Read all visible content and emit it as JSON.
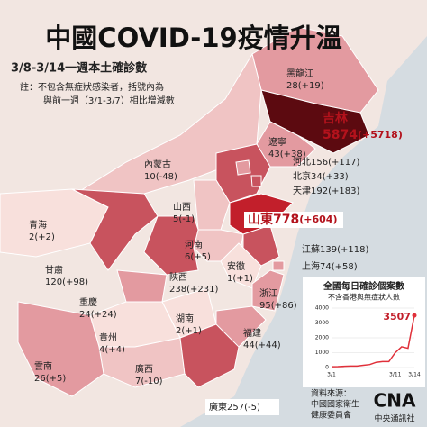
{
  "header": {
    "title": "中國COVID-19疫情升溫",
    "subtitle": "3/8-3/14一週本土確診數",
    "note": [
      "註：不包含無症狀感染者，括號內為",
      "與前一週（3/1-3/7）相比增減數"
    ]
  },
  "provinces": [
    {
      "name": "黑龍江",
      "cases": 28,
      "change": "(+19)"
    },
    {
      "name": "吉林",
      "cases": 5874,
      "change": "(+5718)"
    },
    {
      "name": "遼寧",
      "cases": 43,
      "change": "(+38)"
    },
    {
      "name": "內蒙古",
      "cases": 10,
      "change": "(-48)"
    },
    {
      "name": "河北",
      "cases": 156,
      "change": "(+117)"
    },
    {
      "name": "北京",
      "cases": 34,
      "change": "(+33)"
    },
    {
      "name": "天津",
      "cases": 192,
      "change": "(+183)"
    },
    {
      "name": "山西",
      "cases": 5,
      "change": "(-1)"
    },
    {
      "name": "山東",
      "cases": 778,
      "change": "(+604)"
    },
    {
      "name": "青海",
      "cases": 2,
      "change": "(+2)"
    },
    {
      "name": "河南",
      "cases": 6,
      "change": "(+5)"
    },
    {
      "name": "江蘇",
      "cases": 139,
      "change": "(+118)"
    },
    {
      "name": "甘肅",
      "cases": 120,
      "change": "(+98)"
    },
    {
      "name": "陝西",
      "cases": 238,
      "change": "(+231)"
    },
    {
      "name": "安徽",
      "cases": 1,
      "change": "(+1)"
    },
    {
      "name": "上海",
      "cases": 74,
      "change": "(+58)"
    },
    {
      "name": "重慶",
      "cases": 24,
      "change": "(+24)"
    },
    {
      "name": "浙江",
      "cases": 95,
      "change": "(+86)"
    },
    {
      "name": "湖南",
      "cases": 2,
      "change": "(+1)"
    },
    {
      "name": "貴州",
      "cases": 4,
      "change": "(+4)"
    },
    {
      "name": "福建",
      "cases": 44,
      "change": "(+44)"
    },
    {
      "name": "廣西",
      "cases": 7,
      "change": "(-10)"
    },
    {
      "name": "雲南",
      "cases": 26,
      "change": "(+5)"
    },
    {
      "name": "廣東",
      "cases": 257,
      "change": "(-5)"
    }
  ],
  "chart_data": {
    "type": "line",
    "title": "全國每日確診個案數",
    "subtitle": "不含香港與無症狀人數",
    "categories": [
      "3/1",
      null,
      null,
      null,
      null,
      null,
      null,
      null,
      null,
      null,
      "3/11",
      null,
      null,
      "3/14"
    ],
    "values": [
      50,
      60,
      80,
      100,
      100,
      150,
      200,
      350,
      400,
      400,
      1000,
      1400,
      1300,
      3507
    ],
    "color": "#e0303a",
    "ylim": [
      0,
      4000
    ],
    "yticks": [
      0,
      1000,
      2000,
      3000,
      4000
    ],
    "grid": true
  },
  "footer": {
    "source": [
      "資料來源：",
      "中國國家衛生",
      "健康委員會"
    ],
    "logo": "CNA",
    "agency": "中央通訊社"
  }
}
